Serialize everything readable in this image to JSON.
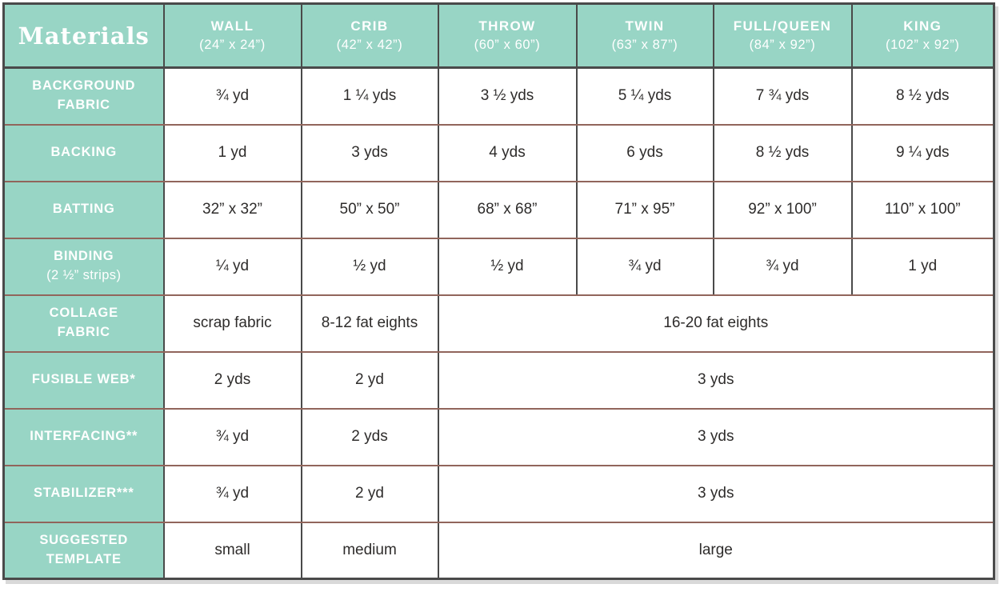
{
  "table": {
    "corner_label": "Materials",
    "columns": [
      {
        "name": "WALL",
        "size": "(24” x 24”)"
      },
      {
        "name": "CRIB",
        "size": "(42” x 42”)"
      },
      {
        "name": "THROW",
        "size": "(60” x 60”)"
      },
      {
        "name": "TWIN",
        "size": "(63” x 87”)"
      },
      {
        "name": "FULL/QUEEN",
        "size": "(84” x 92”)"
      },
      {
        "name": "KING",
        "size": "(102” x 92”)"
      }
    ],
    "rows": [
      {
        "label_lines": [
          "BACKGROUND",
          "FABRIC"
        ],
        "sublabel": "",
        "cells": [
          {
            "text": "¾ yd",
            "span": 1
          },
          {
            "text": "1 ¼ yds",
            "span": 1
          },
          {
            "text": "3 ½ yds",
            "span": 1
          },
          {
            "text": "5 ¼ yds",
            "span": 1
          },
          {
            "text": "7 ¾ yds",
            "span": 1
          },
          {
            "text": "8 ½ yds",
            "span": 1
          }
        ]
      },
      {
        "label_lines": [
          "BACKING"
        ],
        "sublabel": "",
        "cells": [
          {
            "text": "1 yd",
            "span": 1
          },
          {
            "text": "3 yds",
            "span": 1
          },
          {
            "text": "4 yds",
            "span": 1
          },
          {
            "text": "6 yds",
            "span": 1
          },
          {
            "text": "8 ½ yds",
            "span": 1
          },
          {
            "text": "9 ¼ yds",
            "span": 1
          }
        ]
      },
      {
        "label_lines": [
          "BATTING"
        ],
        "sublabel": "",
        "cells": [
          {
            "text": "32” x 32”",
            "span": 1
          },
          {
            "text": "50” x 50”",
            "span": 1
          },
          {
            "text": "68” x 68”",
            "span": 1
          },
          {
            "text": "71” x 95”",
            "span": 1
          },
          {
            "text": "92” x 100”",
            "span": 1
          },
          {
            "text": "110” x 100”",
            "span": 1
          }
        ]
      },
      {
        "label_lines": [
          "BINDING"
        ],
        "sublabel": "(2 ½” strips)",
        "cells": [
          {
            "text": "¼ yd",
            "span": 1
          },
          {
            "text": "½ yd",
            "span": 1
          },
          {
            "text": "½ yd",
            "span": 1
          },
          {
            "text": "¾ yd",
            "span": 1
          },
          {
            "text": "¾ yd",
            "span": 1
          },
          {
            "text": "1 yd",
            "span": 1
          }
        ]
      },
      {
        "label_lines": [
          "COLLAGE",
          "FABRIC"
        ],
        "sublabel": "",
        "cells": [
          {
            "text": "scrap fabric",
            "span": 1
          },
          {
            "text": "8-12 fat eights",
            "span": 1
          },
          {
            "text": "16-20 fat eights",
            "span": 4
          }
        ]
      },
      {
        "label_lines": [
          "FUSIBLE WEB*"
        ],
        "sublabel": "",
        "cells": [
          {
            "text": "2 yds",
            "span": 1
          },
          {
            "text": "2 yd",
            "span": 1
          },
          {
            "text": "3 yds",
            "span": 4
          }
        ]
      },
      {
        "label_lines": [
          "INTERFACING**"
        ],
        "sublabel": "",
        "cells": [
          {
            "text": "¾ yd",
            "span": 1
          },
          {
            "text": "2 yds",
            "span": 1
          },
          {
            "text": "3 yds",
            "span": 4
          }
        ]
      },
      {
        "label_lines": [
          "STABILIZER***"
        ],
        "sublabel": "",
        "cells": [
          {
            "text": "¾ yd",
            "span": 1
          },
          {
            "text": "2 yd",
            "span": 1
          },
          {
            "text": "3 yds",
            "span": 4
          }
        ]
      },
      {
        "label_lines": [
          "SUGGESTED",
          "TEMPLATE"
        ],
        "sublabel": "",
        "cells": [
          {
            "text": "small",
            "span": 1
          },
          {
            "text": "medium",
            "span": 1
          },
          {
            "text": "large",
            "span": 4
          }
        ]
      }
    ]
  },
  "colors": {
    "teal_fill": "#98d5c5",
    "border_dark": "#4a4a4a",
    "border_brown": "#91655b",
    "text_white": "#ffffff",
    "text_dark": "#2e2c2b",
    "shadow": "#d9d9d9"
  }
}
